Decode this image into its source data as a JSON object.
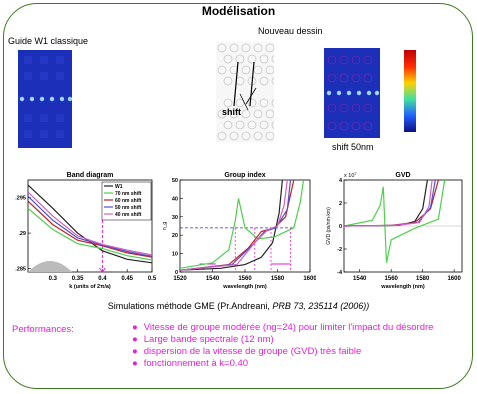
{
  "slide": {
    "title": "Modélisation",
    "guide_label": "Guide W1 classique",
    "new_design_label": "Nouveau dessin",
    "shift_label": "shift",
    "shift50_label": "shift 50nm",
    "simulation_prefix": "Simulations méthode GME (Pr.Andreani, ",
    "simulation_ref": "PRB 73, 235114 (2006))",
    "performances_label": "Performances:",
    "performances": [
      "Vitesse de groupe modérée (ng=24) pour limiter l'impact du désordre",
      "Large bande spectrale (12 nm)",
      "dispersion de la vitesse de groupe (GVD) très faible",
      "fonctionnement à k=0.40"
    ]
  },
  "colors": {
    "frame": "#3f7a1e",
    "accent": "#e41fd6",
    "field_blue": "#1b2fb8"
  },
  "chart_data": [
    {
      "type": "line",
      "title": "Band diagram",
      "xlabel": "k (units of 2π/a)",
      "ylabel": "",
      "x_ticks": [
        "0.3",
        "0.35",
        "0.4",
        "0.45",
        "0.5"
      ],
      "y_ticks": [
        ".295",
        ".29",
        ".285"
      ],
      "xlim": [
        0.25,
        0.5
      ],
      "legend": "top-right",
      "series": [
        {
          "name": "W1",
          "color": "#222222",
          "x": [
            0.25,
            0.3,
            0.35,
            0.4,
            0.45,
            0.5
          ],
          "y": [
            0.2968,
            0.2935,
            0.29,
            0.2875,
            0.2863,
            0.2858
          ]
        },
        {
          "name": "70 nm shift",
          "color": "#4ed04e",
          "x": [
            0.25,
            0.3,
            0.35,
            0.4,
            0.45,
            0.5
          ],
          "y": [
            0.2935,
            0.2905,
            0.2885,
            0.2878,
            0.2868,
            0.2862
          ]
        },
        {
          "name": "60 nm shift",
          "color": "#c02020",
          "x": [
            0.25,
            0.3,
            0.35,
            0.4,
            0.45,
            0.5
          ],
          "y": [
            0.2945,
            0.2912,
            0.289,
            0.2882,
            0.2872,
            0.2866
          ]
        },
        {
          "name": "50 nm shift",
          "color": "#5050d0",
          "x": [
            0.25,
            0.3,
            0.35,
            0.4,
            0.45,
            0.5
          ],
          "y": [
            0.2952,
            0.2918,
            0.2893,
            0.2883,
            0.2874,
            0.2867
          ]
        },
        {
          "name": "40 nm shift",
          "color": "#d060c0",
          "x": [
            0.25,
            0.3,
            0.35,
            0.4,
            0.45,
            0.5
          ],
          "y": [
            0.2958,
            0.2924,
            0.2896,
            0.2884,
            0.2876,
            0.2869
          ]
        }
      ]
    },
    {
      "type": "line",
      "title": "Group index",
      "xlabel": "wavelength (nm)",
      "ylabel": "n_g",
      "x_ticks": [
        "1520",
        "1540",
        "1560",
        "1580",
        "1600"
      ],
      "y_ticks": [
        "0",
        "10",
        "20",
        "30",
        "40",
        "50"
      ],
      "xlim": [
        1520,
        1600
      ],
      "ylim": [
        0,
        50
      ],
      "annotation_ng": 24,
      "series": [
        {
          "name": "W1",
          "color": "#222222",
          "x": [
            1520,
            1545,
            1560,
            1570,
            1577,
            1581,
            1583
          ],
          "y": [
            1,
            2,
            4,
            8,
            16,
            32,
            50
          ]
        },
        {
          "name": "70 nm shift",
          "color": "#4ed04e",
          "x": [
            1520,
            1540,
            1550,
            1554,
            1556,
            1560,
            1568,
            1578,
            1590,
            1594,
            1596
          ],
          "y": [
            2,
            5,
            12,
            28,
            40,
            24,
            18,
            19,
            24,
            38,
            50
          ]
        },
        {
          "name": "60 nm shift",
          "color": "#c02020",
          "x": [
            1520,
            1550,
            1562,
            1570,
            1578,
            1585,
            1590
          ],
          "y": [
            1,
            4,
            13,
            22,
            24,
            30,
            50
          ]
        },
        {
          "name": "50 nm shift",
          "color": "#5050d0",
          "x": [
            1520,
            1552,
            1565,
            1572,
            1579,
            1586,
            1588
          ],
          "y": [
            1,
            4,
            15,
            22,
            24,
            34,
            50
          ]
        },
        {
          "name": "40 nm shift",
          "color": "#d060c0",
          "x": [
            1520,
            1555,
            1566,
            1574,
            1580,
            1584,
            1586
          ],
          "y": [
            1,
            4,
            16,
            23,
            25,
            36,
            50
          ]
        }
      ]
    },
    {
      "type": "line",
      "title": "GVD",
      "xlabel": "wavelength (nm)",
      "ylabel": "GVD (ps/nm·km)",
      "y_exponent": "x 10",
      "x_ticks": [
        "1540",
        "1560",
        "1580",
        "1600"
      ],
      "y_ticks": [
        "4",
        "2",
        "0",
        "-2",
        "-4"
      ],
      "xlim": [
        1530,
        1605
      ],
      "ylim": [
        -4,
        4
      ],
      "series": [
        {
          "name": "W1",
          "color": "#222222",
          "x": [
            1530,
            1565,
            1575,
            1580,
            1583
          ],
          "y": [
            0,
            0.05,
            0.4,
            1.5,
            4
          ]
        },
        {
          "name": "70 nm shift",
          "color": "#4ed04e",
          "x": [
            1530,
            1548,
            1553,
            1555,
            1556,
            1557,
            1560,
            1575,
            1590,
            1594
          ],
          "y": [
            0,
            0.5,
            1.8,
            3.4,
            0,
            -3.2,
            -1.2,
            -0.2,
            0.6,
            4
          ]
        },
        {
          "name": "60 nm shift",
          "color": "#c02020",
          "x": [
            1530,
            1560,
            1575,
            1585,
            1590
          ],
          "y": [
            0,
            0.05,
            0.3,
            1.5,
            4
          ]
        },
        {
          "name": "50 nm shift",
          "color": "#5050d0",
          "x": [
            1530,
            1562,
            1577,
            1585,
            1588
          ],
          "y": [
            0,
            0.05,
            0.3,
            1.6,
            4
          ]
        },
        {
          "name": "40 nm shift",
          "color": "#d060c0",
          "x": [
            1530,
            1563,
            1578,
            1584,
            1586
          ],
          "y": [
            0,
            0.05,
            0.3,
            1.7,
            4
          ]
        }
      ]
    }
  ]
}
